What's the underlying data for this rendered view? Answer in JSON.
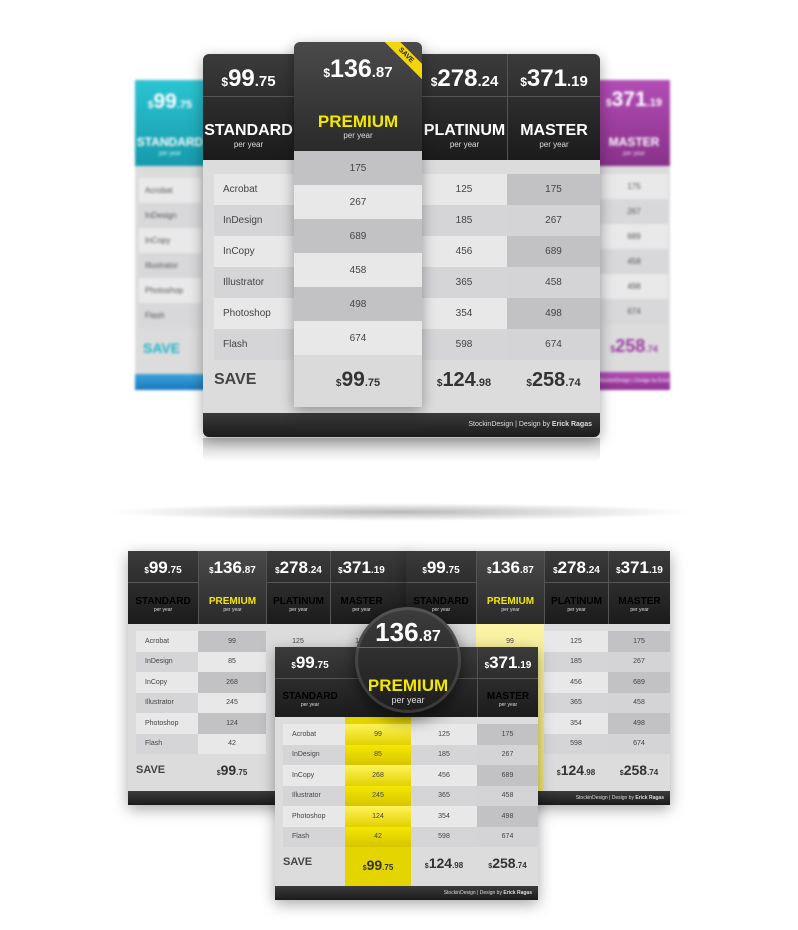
{
  "colors": {
    "teal": "#1fb5c5",
    "purple": "#9b3d9f",
    "yellow": "#f4e700",
    "dark": "#2b2b2b"
  },
  "currency": "$",
  "save_badge": "SAVE",
  "per_year": "per year",
  "plans": {
    "standard": {
      "name": "STANDARD",
      "dollars": "99",
      "cents": ".75"
    },
    "premium": {
      "name": "PREMIUM",
      "dollars": "136",
      "cents": ".87"
    },
    "platinum": {
      "name": "PLATINUM",
      "dollars": "278",
      "cents": ".24"
    },
    "master": {
      "name": "MASTER",
      "dollars": "371",
      "cents": ".19"
    }
  },
  "features": [
    "Acrobat",
    "InDesign",
    "InCopy",
    "Illustrator",
    "Photoshop",
    "Flash"
  ],
  "save_label": "SAVE",
  "premium_values": [
    "175",
    "267",
    "689",
    "458",
    "498",
    "674"
  ],
  "platinum_values": [
    "125",
    "185",
    "456",
    "365",
    "354",
    "598"
  ],
  "master_values": [
    "175",
    "267",
    "689",
    "458",
    "498",
    "674"
  ],
  "standard_values": [
    "99",
    "85",
    "268",
    "245",
    "124",
    "42"
  ],
  "footer_prices": {
    "standard": {
      "dollars": "99",
      "cents": ".75"
    },
    "premium": {
      "dollars": "99",
      "cents": ".75"
    },
    "platinum": {
      "dollars": "124",
      "cents": ".98"
    },
    "master": {
      "dollars": "258",
      "cents": ".74"
    }
  },
  "credit_brand": "StockinDesign",
  "credit_sep": " | Design by ",
  "credit_author": "Erick Ragas"
}
